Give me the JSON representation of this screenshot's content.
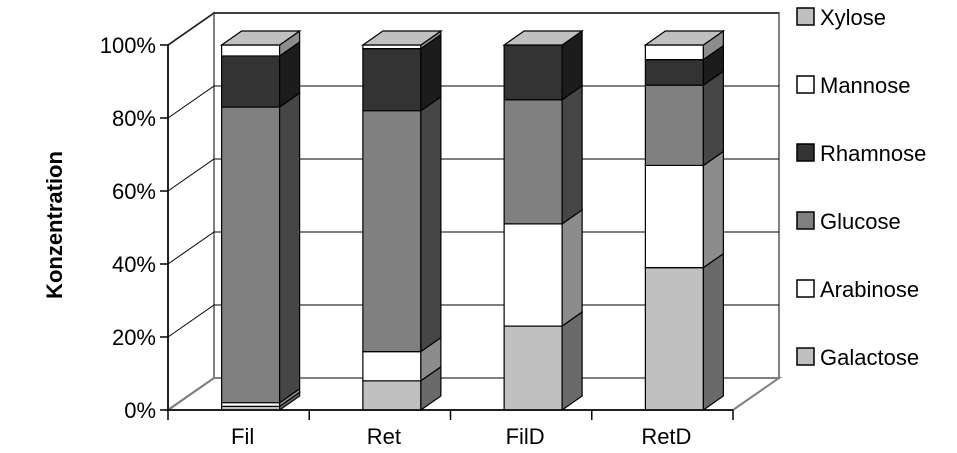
{
  "chart_data": {
    "type": "bar",
    "stacked": true,
    "percent_stacked": true,
    "three_d": true,
    "categories": [
      "Fil",
      "Ret",
      "FilD",
      "RetD"
    ],
    "series": [
      {
        "name": "Galactose",
        "color": "#c0c0c0",
        "values": [
          1,
          8,
          23,
          39
        ]
      },
      {
        "name": "Arabinose",
        "color": "#ffffff",
        "values": [
          1,
          8,
          28,
          28
        ]
      },
      {
        "name": "Glucose",
        "color": "#808080",
        "values": [
          81,
          66,
          34,
          22
        ]
      },
      {
        "name": "Rhamnose",
        "color": "#333333",
        "values": [
          14,
          17,
          15,
          7
        ]
      },
      {
        "name": "Mannose",
        "color": "#ffffff",
        "values": [
          3,
          1,
          0,
          4
        ]
      },
      {
        "name": "Xylose",
        "color": "#c0c0c0",
        "values": [
          0,
          0,
          0,
          0
        ]
      }
    ],
    "ylim": [
      0,
      100
    ],
    "yticks": [
      "0%",
      "20%",
      "40%",
      "60%",
      "80%",
      "100%"
    ],
    "ylabel": "Konzentration",
    "xlabel": "",
    "title": "",
    "grid": true,
    "legend_position": "right",
    "legend_order": [
      "Xylose",
      "Mannose",
      "Rhamnose",
      "Glucose",
      "Arabinose",
      "Galactose"
    ]
  }
}
